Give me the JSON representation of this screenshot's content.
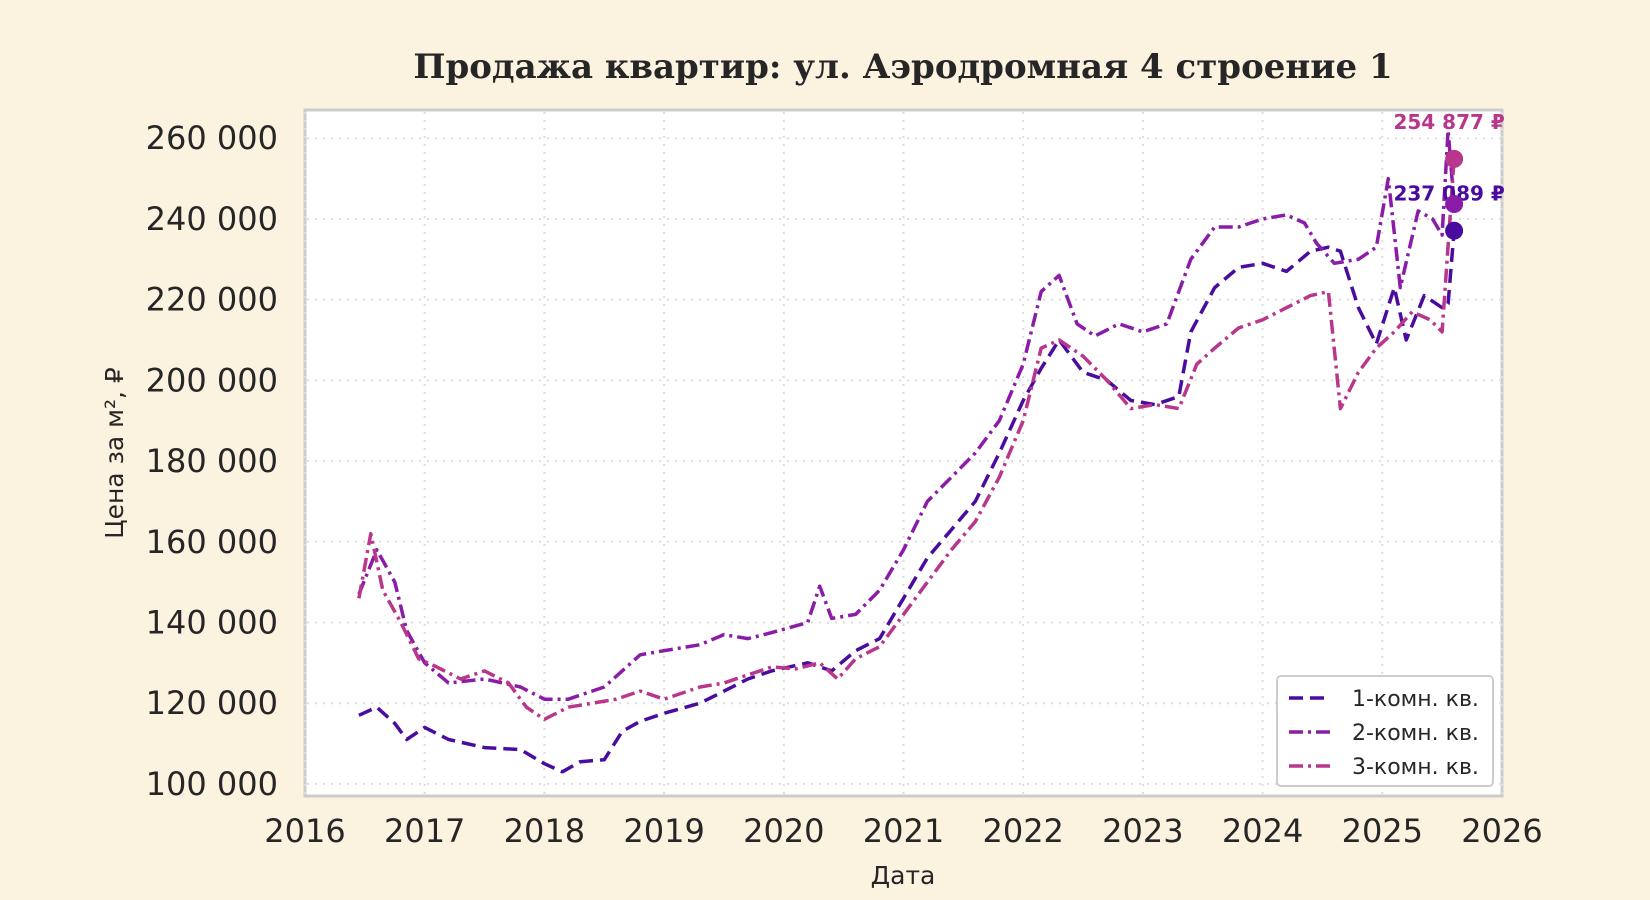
{
  "chart_data": {
    "type": "line",
    "title": "Продажа квартир: ул. Аэродромная 4 строение 1",
    "xlabel": "Дата",
    "ylabel": "Цена за м², ₽",
    "xlim": [
      2016,
      2026
    ],
    "ylim": [
      97000,
      267000
    ],
    "x_ticks": [
      "2016",
      "2017",
      "2018",
      "2019",
      "2020",
      "2021",
      "2022",
      "2023",
      "2024",
      "2025",
      "2026"
    ],
    "y_ticks": [
      "100 000",
      "120 000",
      "140 000",
      "160 000",
      "180 000",
      "200 000",
      "220 000",
      "240 000",
      "260 000"
    ],
    "grid": true,
    "legend_position": "bottom-right",
    "series": [
      {
        "name": "1-комн. кв.",
        "color": "#4a0c9e",
        "dash": "dashed",
        "end_label": "237 089 ₽",
        "x": [
          2016.45,
          2016.6,
          2016.75,
          2016.85,
          2017.0,
          2017.2,
          2017.5,
          2017.8,
          2018.0,
          2018.15,
          2018.3,
          2018.5,
          2018.65,
          2018.8,
          2019.0,
          2019.3,
          2019.5,
          2019.7,
          2019.9,
          2020.2,
          2020.4,
          2020.6,
          2020.8,
          2021.0,
          2021.2,
          2021.4,
          2021.6,
          2021.8,
          2022.0,
          2022.15,
          2022.3,
          2022.5,
          2022.7,
          2022.9,
          2023.1,
          2023.3,
          2023.4,
          2023.6,
          2023.8,
          2024.0,
          2024.2,
          2024.4,
          2024.55,
          2024.65,
          2024.8,
          2024.95,
          2025.1,
          2025.2,
          2025.35,
          2025.45,
          2025.5,
          2025.55,
          2025.6
        ],
        "y": [
          117000,
          119000,
          115000,
          111000,
          114000,
          111000,
          109000,
          108500,
          105000,
          103000,
          105500,
          106000,
          113000,
          115500,
          117500,
          120000,
          123000,
          126000,
          128000,
          130000,
          128000,
          133000,
          136000,
          146000,
          156000,
          163000,
          170000,
          182000,
          195000,
          203000,
          210000,
          202000,
          200000,
          195000,
          194000,
          196000,
          212000,
          223000,
          228000,
          229000,
          227000,
          232000,
          233000,
          232000,
          218000,
          209000,
          223000,
          210000,
          221000,
          219000,
          218000,
          219000,
          237089
        ]
      },
      {
        "name": "2-комн. кв.",
        "color": "#8b1ca8",
        "dash": "dashdot",
        "end_label": "",
        "x": [
          2016.45,
          2016.6,
          2016.75,
          2016.85,
          2017.0,
          2017.2,
          2017.5,
          2017.8,
          2018.0,
          2018.2,
          2018.5,
          2018.65,
          2018.8,
          2019.0,
          2019.3,
          2019.5,
          2019.7,
          2019.9,
          2020.2,
          2020.3,
          2020.4,
          2020.6,
          2020.8,
          2021.0,
          2021.2,
          2021.4,
          2021.6,
          2021.8,
          2022.0,
          2022.15,
          2022.3,
          2022.45,
          2022.6,
          2022.8,
          2023.0,
          2023.2,
          2023.4,
          2023.6,
          2023.8,
          2024.0,
          2024.2,
          2024.35,
          2024.45,
          2024.6,
          2024.8,
          2024.95,
          2025.05,
          2025.15,
          2025.3,
          2025.42,
          2025.5,
          2025.55,
          2025.6
        ],
        "y": [
          147000,
          158000,
          150000,
          138000,
          130000,
          125000,
          126000,
          124000,
          121000,
          121000,
          124000,
          128000,
          132000,
          133000,
          134500,
          137000,
          136000,
          137500,
          140000,
          149000,
          141000,
          142000,
          148000,
          158000,
          170000,
          176000,
          182000,
          190000,
          204000,
          222000,
          226000,
          214000,
          211000,
          214000,
          212000,
          214000,
          230000,
          238000,
          238000,
          240000,
          241000,
          239000,
          234000,
          229000,
          230000,
          233000,
          250000,
          223000,
          242000,
          240000,
          236000,
          262000,
          243693
        ]
      },
      {
        "name": "3-комн. кв.",
        "color": "#b8368b",
        "dash": "dashdot",
        "end_label": "254 877 ₽",
        "x": [
          2016.45,
          2016.55,
          2016.65,
          2016.8,
          2016.95,
          2017.1,
          2017.3,
          2017.5,
          2017.7,
          2017.85,
          2018.0,
          2018.2,
          2018.4,
          2018.6,
          2018.8,
          2019.0,
          2019.3,
          2019.5,
          2019.7,
          2019.9,
          2020.1,
          2020.3,
          2020.45,
          2020.6,
          2020.8,
          2021.0,
          2021.2,
          2021.4,
          2021.6,
          2021.8,
          2022.0,
          2022.15,
          2022.3,
          2022.5,
          2022.7,
          2022.9,
          2023.1,
          2023.3,
          2023.45,
          2023.6,
          2023.8,
          2024.0,
          2024.2,
          2024.4,
          2024.55,
          2024.65,
          2024.8,
          2024.95,
          2025.1,
          2025.25,
          2025.4,
          2025.5,
          2025.6
        ],
        "y": [
          146000,
          162000,
          148000,
          140000,
          131000,
          129000,
          126000,
          128000,
          125000,
          119000,
          116000,
          119000,
          120000,
          121000,
          123000,
          121000,
          124000,
          125000,
          127000,
          129000,
          128500,
          130000,
          126000,
          131000,
          134000,
          142000,
          150000,
          158000,
          165000,
          176000,
          190000,
          208000,
          210000,
          206000,
          200000,
          193000,
          194000,
          193000,
          204000,
          208000,
          213000,
          215000,
          218000,
          221000,
          222000,
          193000,
          202000,
          208000,
          212000,
          217000,
          215000,
          212000,
          254877
        ]
      }
    ]
  }
}
